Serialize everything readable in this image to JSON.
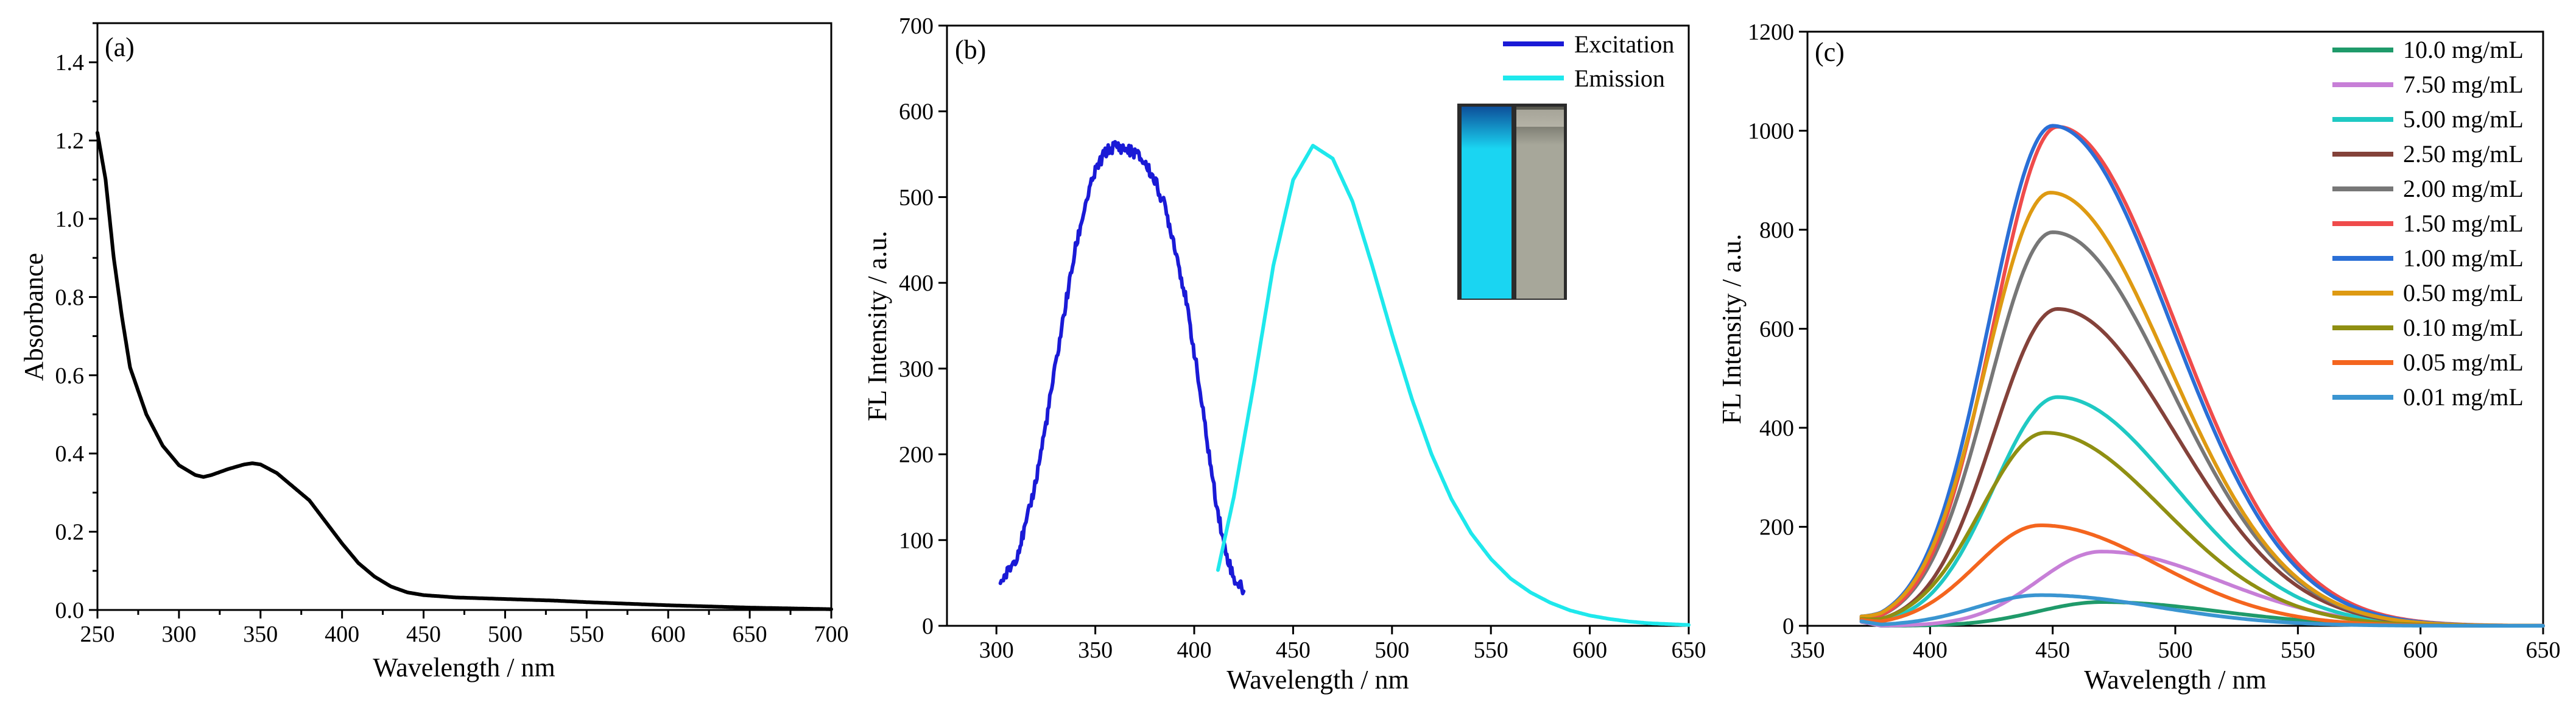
{
  "chart_data": [
    {
      "panel": "(a)",
      "type": "line",
      "xlabel": "Wavelength / nm",
      "ylabel": "Absorbance",
      "xlim": [
        250,
        700
      ],
      "ylim": [
        0.0,
        1.5
      ],
      "xticks": [
        "250",
        "300",
        "350",
        "400",
        "450",
        "500",
        "550",
        "600",
        "650",
        "700"
      ],
      "yticks": [
        "0.0",
        "0.2",
        "0.4",
        "0.6",
        "0.8",
        "1.0",
        "1.2",
        "1.4"
      ],
      "series": [
        {
          "name": "Absorbance",
          "color": "#000000",
          "x": [
            250,
            255,
            260,
            265,
            270,
            280,
            290,
            300,
            310,
            315,
            320,
            330,
            340,
            345,
            350,
            360,
            370,
            380,
            390,
            400,
            410,
            420,
            430,
            440,
            450,
            470,
            500,
            530,
            550,
            600,
            650,
            700
          ],
          "y": [
            1.22,
            1.1,
            0.9,
            0.75,
            0.62,
            0.5,
            0.42,
            0.37,
            0.345,
            0.34,
            0.345,
            0.36,
            0.372,
            0.375,
            0.372,
            0.35,
            0.315,
            0.28,
            0.225,
            0.17,
            0.12,
            0.085,
            0.06,
            0.045,
            0.038,
            0.032,
            0.028,
            0.024,
            0.02,
            0.012,
            0.006,
            0.002
          ]
        }
      ]
    },
    {
      "panel": "(b)",
      "type": "line",
      "xlabel": "Wavelength / nm",
      "ylabel": "FL Intensity / a.u.",
      "xlim": [
        275,
        650
      ],
      "ylim": [
        0,
        700
      ],
      "xticks": [
        "300",
        "350",
        "400",
        "450",
        "500",
        "550",
        "600",
        "650"
      ],
      "yticks": [
        "0",
        "100",
        "200",
        "300",
        "400",
        "500",
        "600",
        "700"
      ],
      "legend_position": "top-right",
      "inset": "photo of two cuvettes: blue fluorescent (left) and clear (right)",
      "series": [
        {
          "name": "Excitation",
          "color": "#1a1ad6",
          "x": [
            302,
            305,
            310,
            315,
            320,
            325,
            330,
            335,
            340,
            345,
            350,
            355,
            360,
            365,
            370,
            375,
            380,
            385,
            390,
            395,
            400,
            405,
            410,
            415,
            420,
            425
          ],
          "y": [
            52,
            60,
            80,
            118,
            170,
            235,
            305,
            375,
            440,
            492,
            530,
            552,
            560,
            556,
            552,
            540,
            520,
            490,
            445,
            390,
            320,
            240,
            160,
            95,
            55,
            42
          ]
        },
        {
          "name": "Emission",
          "color": "#1ee8ec",
          "x": [
            412,
            420,
            430,
            440,
            450,
            460,
            470,
            480,
            490,
            500,
            510,
            520,
            530,
            540,
            550,
            560,
            570,
            580,
            590,
            600,
            610,
            620,
            630,
            640,
            650
          ],
          "y": [
            65,
            150,
            280,
            420,
            520,
            560,
            545,
            495,
            420,
            340,
            265,
            200,
            148,
            108,
            78,
            55,
            39,
            27,
            18,
            12,
            8,
            5,
            3,
            2,
            1
          ]
        }
      ]
    },
    {
      "panel": "(c)",
      "type": "line",
      "xlabel": "Wavelength / nm",
      "ylabel": "FL Intensity / a.u.",
      "xlim": [
        350,
        650
      ],
      "ylim": [
        0,
        1200
      ],
      "xticks": [
        "350",
        "400",
        "450",
        "500",
        "550",
        "600",
        "650"
      ],
      "yticks": [
        "0",
        "200",
        "400",
        "600",
        "800",
        "1000",
        "1200"
      ],
      "legend_position": "top-right",
      "series": [
        {
          "name": "10.0 mg/mL",
          "color": "#1f9a6a",
          "peak_x": 470,
          "peak": 48
        },
        {
          "name": "7.50 mg/mL",
          "color": "#c77fd7",
          "peak_x": 470,
          "peak": 150
        },
        {
          "name": "5.00 mg/mL",
          "color": "#1fc9c3",
          "peak_x": 452,
          "peak": 462
        },
        {
          "name": "2.50 mg/mL",
          "color": "#84423a",
          "peak_x": 452,
          "peak": 640
        },
        {
          "name": "2.00 mg/mL",
          "color": "#777777",
          "peak_x": 450,
          "peak": 795
        },
        {
          "name": "1.50 mg/mL",
          "color": "#ef4b4b",
          "peak_x": 452,
          "peak": 1008
        },
        {
          "name": "1.00 mg/mL",
          "color": "#2a6fd6",
          "peak_x": 450,
          "peak": 1010
        },
        {
          "name": "0.50 mg/mL",
          "color": "#de9a12",
          "peak_x": 449,
          "peak": 875
        },
        {
          "name": "0.10 mg/mL",
          "color": "#8f8f12",
          "peak_x": 447,
          "peak": 390
        },
        {
          "name": "0.05 mg/mL",
          "color": "#f4651e",
          "peak_x": 445,
          "peak": 203
        },
        {
          "name": "0.01 mg/mL",
          "color": "#3a95d1",
          "peak_x": 445,
          "peak": 62
        }
      ]
    }
  ],
  "photo_colors": {
    "glow": "#1ad5f2",
    "glow_dark": "#0d4f9a",
    "clear": "#a7a79a",
    "clear_dark": "#55554c"
  }
}
